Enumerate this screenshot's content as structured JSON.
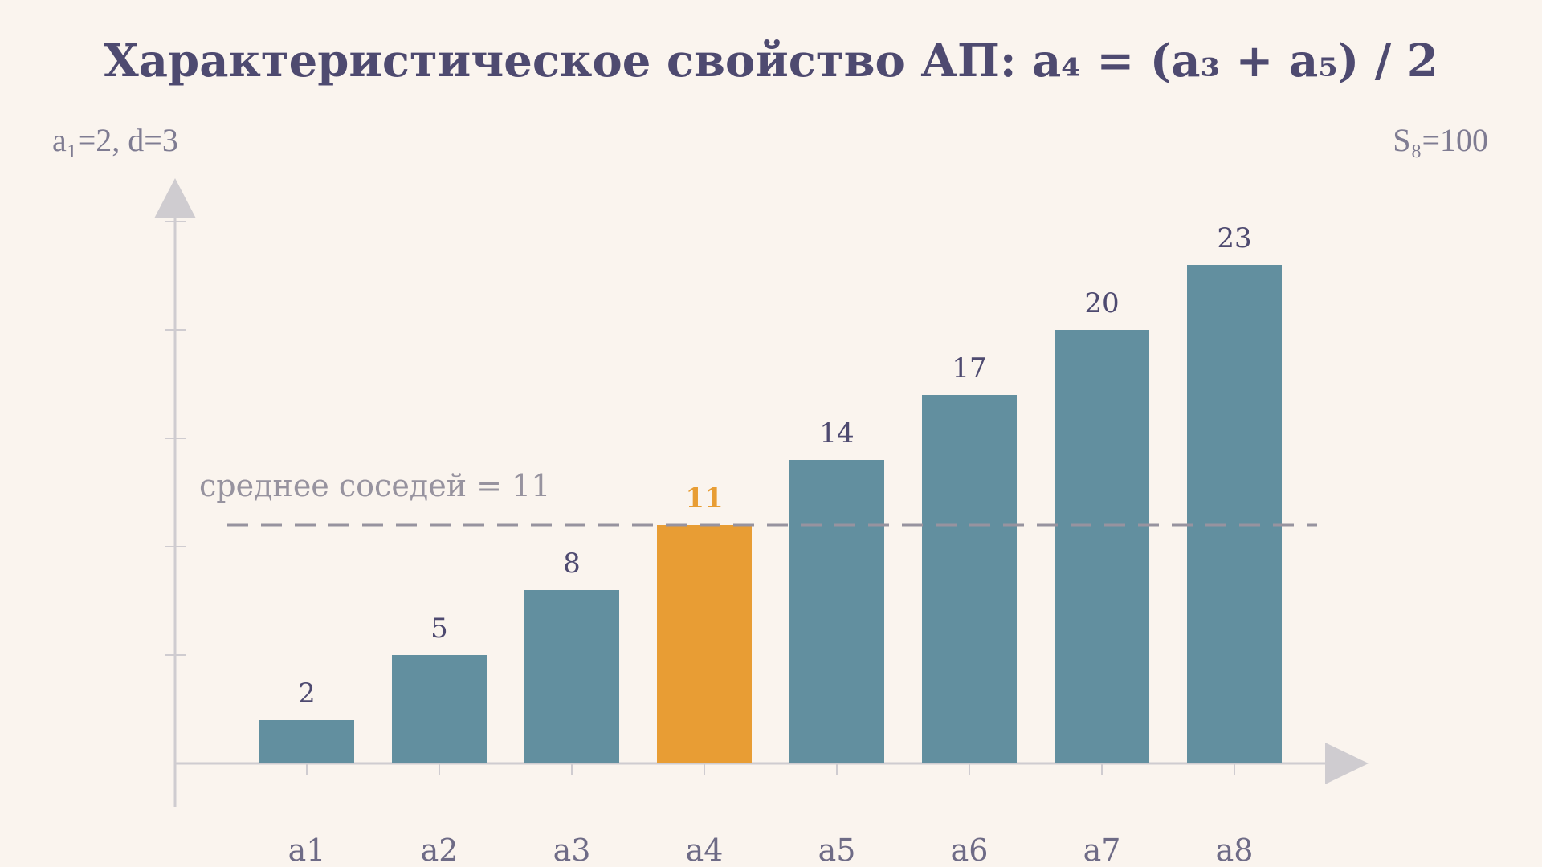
{
  "chart_data": {
    "type": "bar",
    "title": "Характеристическое свойство АП: a₄ = (a₃ + a₅) / 2",
    "categories": [
      "a1",
      "a2",
      "a3",
      "a4",
      "a5",
      "a6",
      "a7",
      "a8"
    ],
    "values": [
      2,
      5,
      8,
      11,
      14,
      17,
      20,
      23
    ],
    "highlight_index": 3,
    "top_left_label": "a₁=2,  d=3",
    "top_right_label": "S₈=100",
    "mean_line": {
      "value": 11,
      "label": "среднее соседей = 11"
    },
    "ylim": [
      0,
      25
    ],
    "grid": false,
    "colors": {
      "bar": "#628f9f",
      "highlight": "#e89d34",
      "axis": "#cfccd0",
      "mean_line": "#97939f",
      "background": "#faf4ee"
    }
  }
}
